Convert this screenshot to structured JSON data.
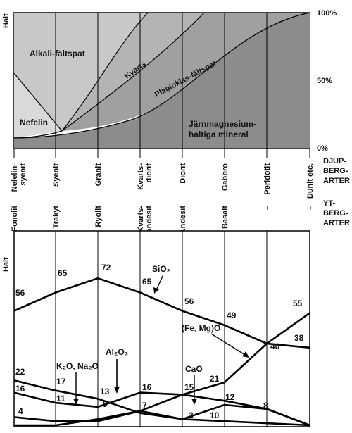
{
  "top_chart": {
    "y_axis_label": "Halt",
    "pct_labels": [
      "100%",
      "50%",
      "0%"
    ],
    "regions": {
      "alkali": "Alkali-fältspat",
      "kvarts": "Kvarts",
      "plagioklas": "Plagioklas-fältspat",
      "nefelin": "Nefelin",
      "jarn_line1": "Järnmagnesium-",
      "jarn_line2": "haltiga mineral"
    },
    "colors": {
      "alkali": "#c8c8c8",
      "kvarts": "#b4b4b4",
      "plagioklas": "#a0a0a0",
      "jarn": "#8c8c8c",
      "nefelin": "#d9d9d9"
    }
  },
  "rocks": {
    "deep": [
      {
        "label": "Nefelin-",
        "label2": "syenit"
      },
      {
        "label": "Syenit",
        "label2": ""
      },
      {
        "label": "Granit",
        "label2": ""
      },
      {
        "label": "Kvarts-",
        "label2": "diorit"
      },
      {
        "label": "Diorit",
        "label2": ""
      },
      {
        "label": "Gabbro",
        "label2": ""
      },
      {
        "label": "Peridotit",
        "label2": ""
      },
      {
        "label": "Dunit etc.",
        "label2": ""
      }
    ],
    "deep_header": [
      "DJUP-",
      "BERG-",
      "ARTER"
    ],
    "surface": [
      {
        "label": "Fonolit",
        "label2": ""
      },
      {
        "label": "Trakyt",
        "label2": ""
      },
      {
        "label": "Ryolit",
        "label2": ""
      },
      {
        "label": "Kvarts-",
        "label2": "andesit"
      },
      {
        "label": "Andesit",
        "label2": ""
      },
      {
        "label": "Basalt",
        "label2": ""
      },
      {
        "label": "–",
        "label2": ""
      },
      {
        "label": "–",
        "label2": ""
      }
    ],
    "surface_header": [
      "YT-",
      "BERG-",
      "ARTER"
    ]
  },
  "chart_data": {
    "type": "line",
    "ylabel": "Halt",
    "categories": [
      "Fonolit",
      "Trakyt",
      "Ryolit",
      "Kvarts-andesit",
      "Andesit",
      "Basalt",
      "–",
      "–"
    ],
    "series": [
      {
        "name": "SiO2",
        "values": [
          56,
          65,
          72,
          65,
          56,
          49,
          40,
          38
        ]
      },
      {
        "name": "(Fe, Mg)O",
        "values": [
          4,
          2,
          2,
          7,
          15,
          21,
          40,
          55
        ]
      },
      {
        "name": "K2O, Na2O",
        "values": [
          22,
          17,
          13,
          6,
          3,
          2,
          1,
          0
        ]
      },
      {
        "name": "Al2O3",
        "values": [
          16,
          11,
          9,
          16,
          15,
          12,
          8,
          0
        ]
      },
      {
        "name": "CaO",
        "values": [
          0,
          0,
          3,
          7,
          3,
          10,
          8,
          0
        ]
      }
    ],
    "value_labels": {
      "SiO2": [
        "56",
        "65",
        "72",
        "65",
        "56",
        "49",
        "40",
        "38"
      ],
      "FeMgO": [
        "4",
        "21",
        "55"
      ],
      "K2O": [
        "22",
        "17",
        "13"
      ],
      "Al2O3": [
        "16",
        "11",
        "9",
        "16",
        "15",
        "12",
        "8"
      ],
      "CaO": [
        "7",
        "3",
        "10"
      ]
    },
    "formula_labels": {
      "sio2": "SiO₂",
      "femgo": "(Fe, Mg)O",
      "al2o3": "Al₂O₃",
      "k2o": "K₂O, Na₂O",
      "cao": "CaO"
    }
  }
}
